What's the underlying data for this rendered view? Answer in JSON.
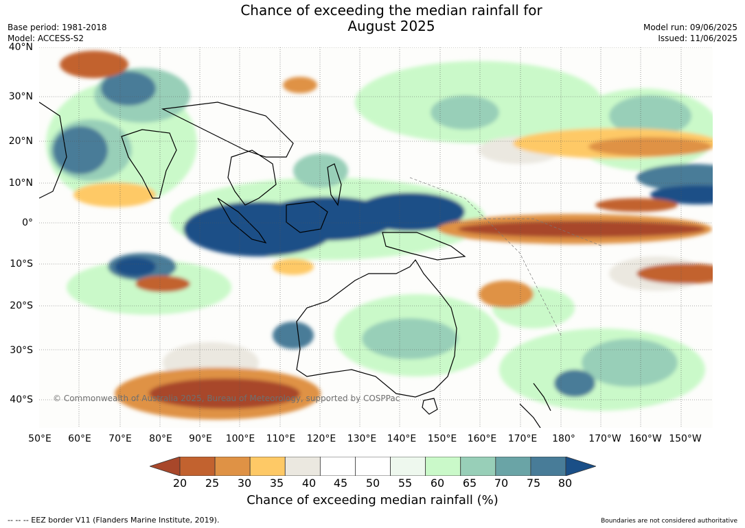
{
  "title": {
    "line1": "Chance of exceeding the median rainfall for",
    "line2": "August 2025"
  },
  "meta_left": {
    "base_period": "Base period: 1981-2018",
    "model": "Model: ACCESS-S2"
  },
  "meta_right": {
    "model_run": "Model run: 09/06/2025",
    "issued": "Issued: 11/06/2025"
  },
  "latitude_labels": [
    "40°N",
    "30°N",
    "20°N",
    "10°N",
    "0°",
    "10°S",
    "20°S",
    "30°S",
    "40°S"
  ],
  "longitude_labels": [
    "50°E",
    "60°E",
    "70°E",
    "80°E",
    "90°E",
    "100°E",
    "110°E",
    "120°E",
    "130°E",
    "140°E",
    "150°E",
    "160°E",
    "170°E",
    "180°",
    "170°W",
    "160°W",
    "150°W"
  ],
  "copyright": "© Commonwealth of Australia 2025, Bureau of Meteorology, supported by COSPPac",
  "colorbar": {
    "ticks": [
      "20",
      "25",
      "30",
      "35",
      "40",
      "45",
      "50",
      "55",
      "60",
      "65",
      "70",
      "75",
      "80"
    ],
    "label": "Chance of exceeding median rainfall (%)",
    "colors": [
      "#a8472a",
      "#c2622f",
      "#df9245",
      "#fec966",
      "#ebe8e0",
      "#ffffff",
      "#ffffff",
      "#eef8ee",
      "#caf9c9",
      "#98cfb8",
      "#6aa4a6",
      "#487c98",
      "#1a4f87"
    ]
  },
  "footer_left": "--  --  -- EEZ border V11 (Flanders Marine Institute, 2019).",
  "footer_right": "Boundaries are not considered authoritative"
}
